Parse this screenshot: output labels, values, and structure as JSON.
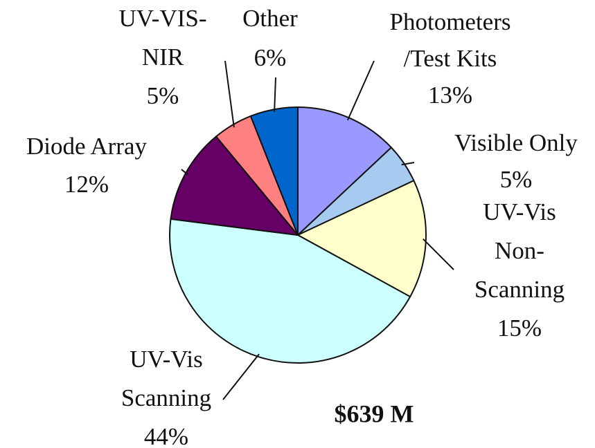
{
  "chart_data": {
    "type": "pie",
    "categories": [
      "Photometers\n/Test Kits",
      "Visible Only",
      "UV-Vis\nNon-\nScanning",
      "UV-Vis\nScanning",
      "Diode Array",
      "UV-VIS-\nNIR",
      "Other"
    ],
    "values": [
      13,
      5,
      15,
      44,
      12,
      5,
      6
    ],
    "value_labels": [
      "13%",
      "5%",
      "15%",
      "44%",
      "12%",
      "5%",
      "6%"
    ],
    "colors": [
      "#9999ff",
      "#a6caf0",
      "#ffffcc",
      "#ccffff",
      "#660066",
      "#ff8080",
      "#0066cc"
    ],
    "annotation": "$639 M"
  }
}
